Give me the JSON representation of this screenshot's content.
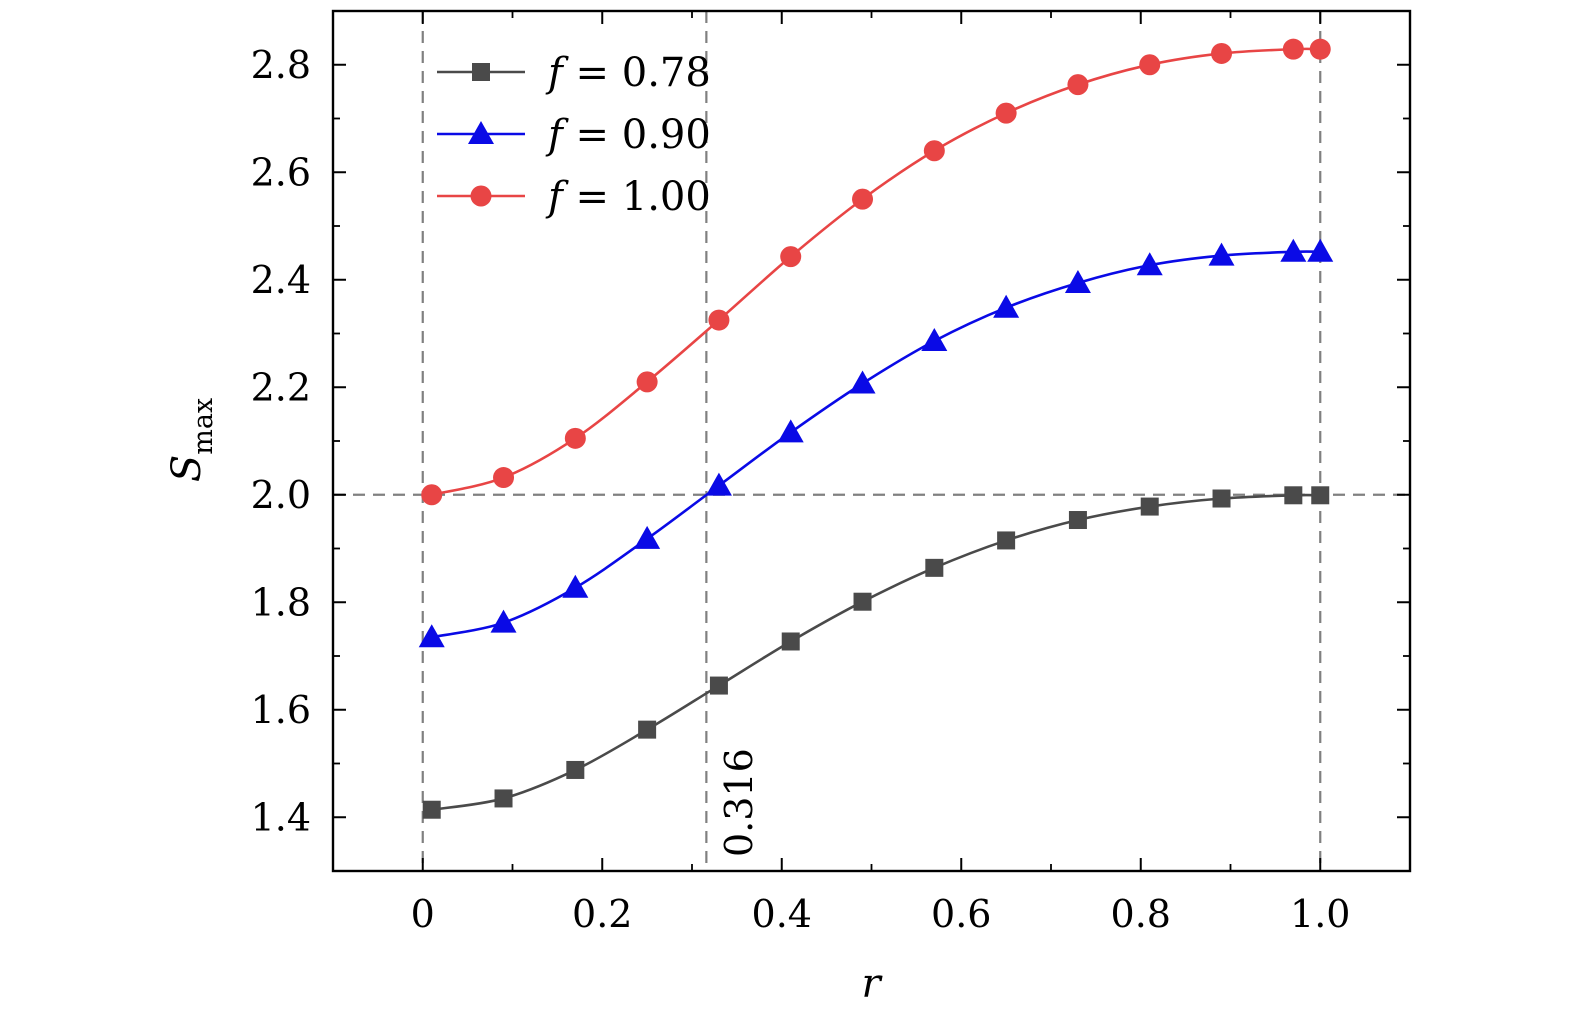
{
  "chart_data": {
    "type": "line",
    "title": "",
    "xlabel": "r",
    "ylabel": {
      "main": "S",
      "subscript": "max"
    },
    "xlim": [
      -0.1,
      1.1
    ],
    "ylim": [
      1.3,
      2.9
    ],
    "xticks": [
      0,
      0.2,
      0.4,
      0.6,
      0.8,
      1.0
    ],
    "xtick_labels": [
      "0",
      "0.2",
      "0.4",
      "0.6",
      "0.8",
      "1.0"
    ],
    "yticks": [
      1.4,
      1.6,
      1.8,
      2.0,
      2.2,
      2.4,
      2.6,
      2.8
    ],
    "ytick_labels": [
      "1.4",
      "1.6",
      "1.8",
      "2.0",
      "2.2",
      "2.4",
      "2.6",
      "2.8"
    ],
    "x": [
      0.01,
      0.09,
      0.17,
      0.25,
      0.33,
      0.41,
      0.49,
      0.57,
      0.65,
      0.73,
      0.81,
      0.89,
      0.97,
      1.0
    ],
    "series": [
      {
        "name": "f = 0.78",
        "var": "f",
        "eq": "= 0.78",
        "color": "#4a4a4a",
        "marker": "square",
        "values": [
          1.414,
          1.435,
          1.488,
          1.563,
          1.645,
          1.727,
          1.801,
          1.864,
          1.915,
          1.953,
          1.978,
          1.993,
          1.999,
          1.999
        ]
      },
      {
        "name": "f = 0.90",
        "var": "f",
        "eq": "= 0.90",
        "color": "#0a0ae6",
        "marker": "triangle",
        "values": [
          1.735,
          1.762,
          1.827,
          1.918,
          2.017,
          2.116,
          2.207,
          2.286,
          2.348,
          2.394,
          2.427,
          2.445,
          2.452,
          2.452
        ]
      },
      {
        "name": "f = 1.00",
        "var": "f",
        "eq": "= 1.00",
        "color": "#e84545",
        "marker": "circle",
        "values": [
          2.0,
          2.032,
          2.105,
          2.21,
          2.325,
          2.443,
          2.55,
          2.64,
          2.71,
          2.763,
          2.8,
          2.821,
          2.829,
          2.829
        ]
      }
    ],
    "reference_lines": {
      "vertical": [
        0,
        0.316,
        1.0
      ],
      "horizontal": [
        2.0
      ],
      "color": "#808080"
    },
    "annotations": [
      {
        "text": "0.316",
        "x": 0.316,
        "y": 1.4,
        "rotation": -90
      }
    ],
    "legend": {
      "position": "top-left"
    }
  }
}
